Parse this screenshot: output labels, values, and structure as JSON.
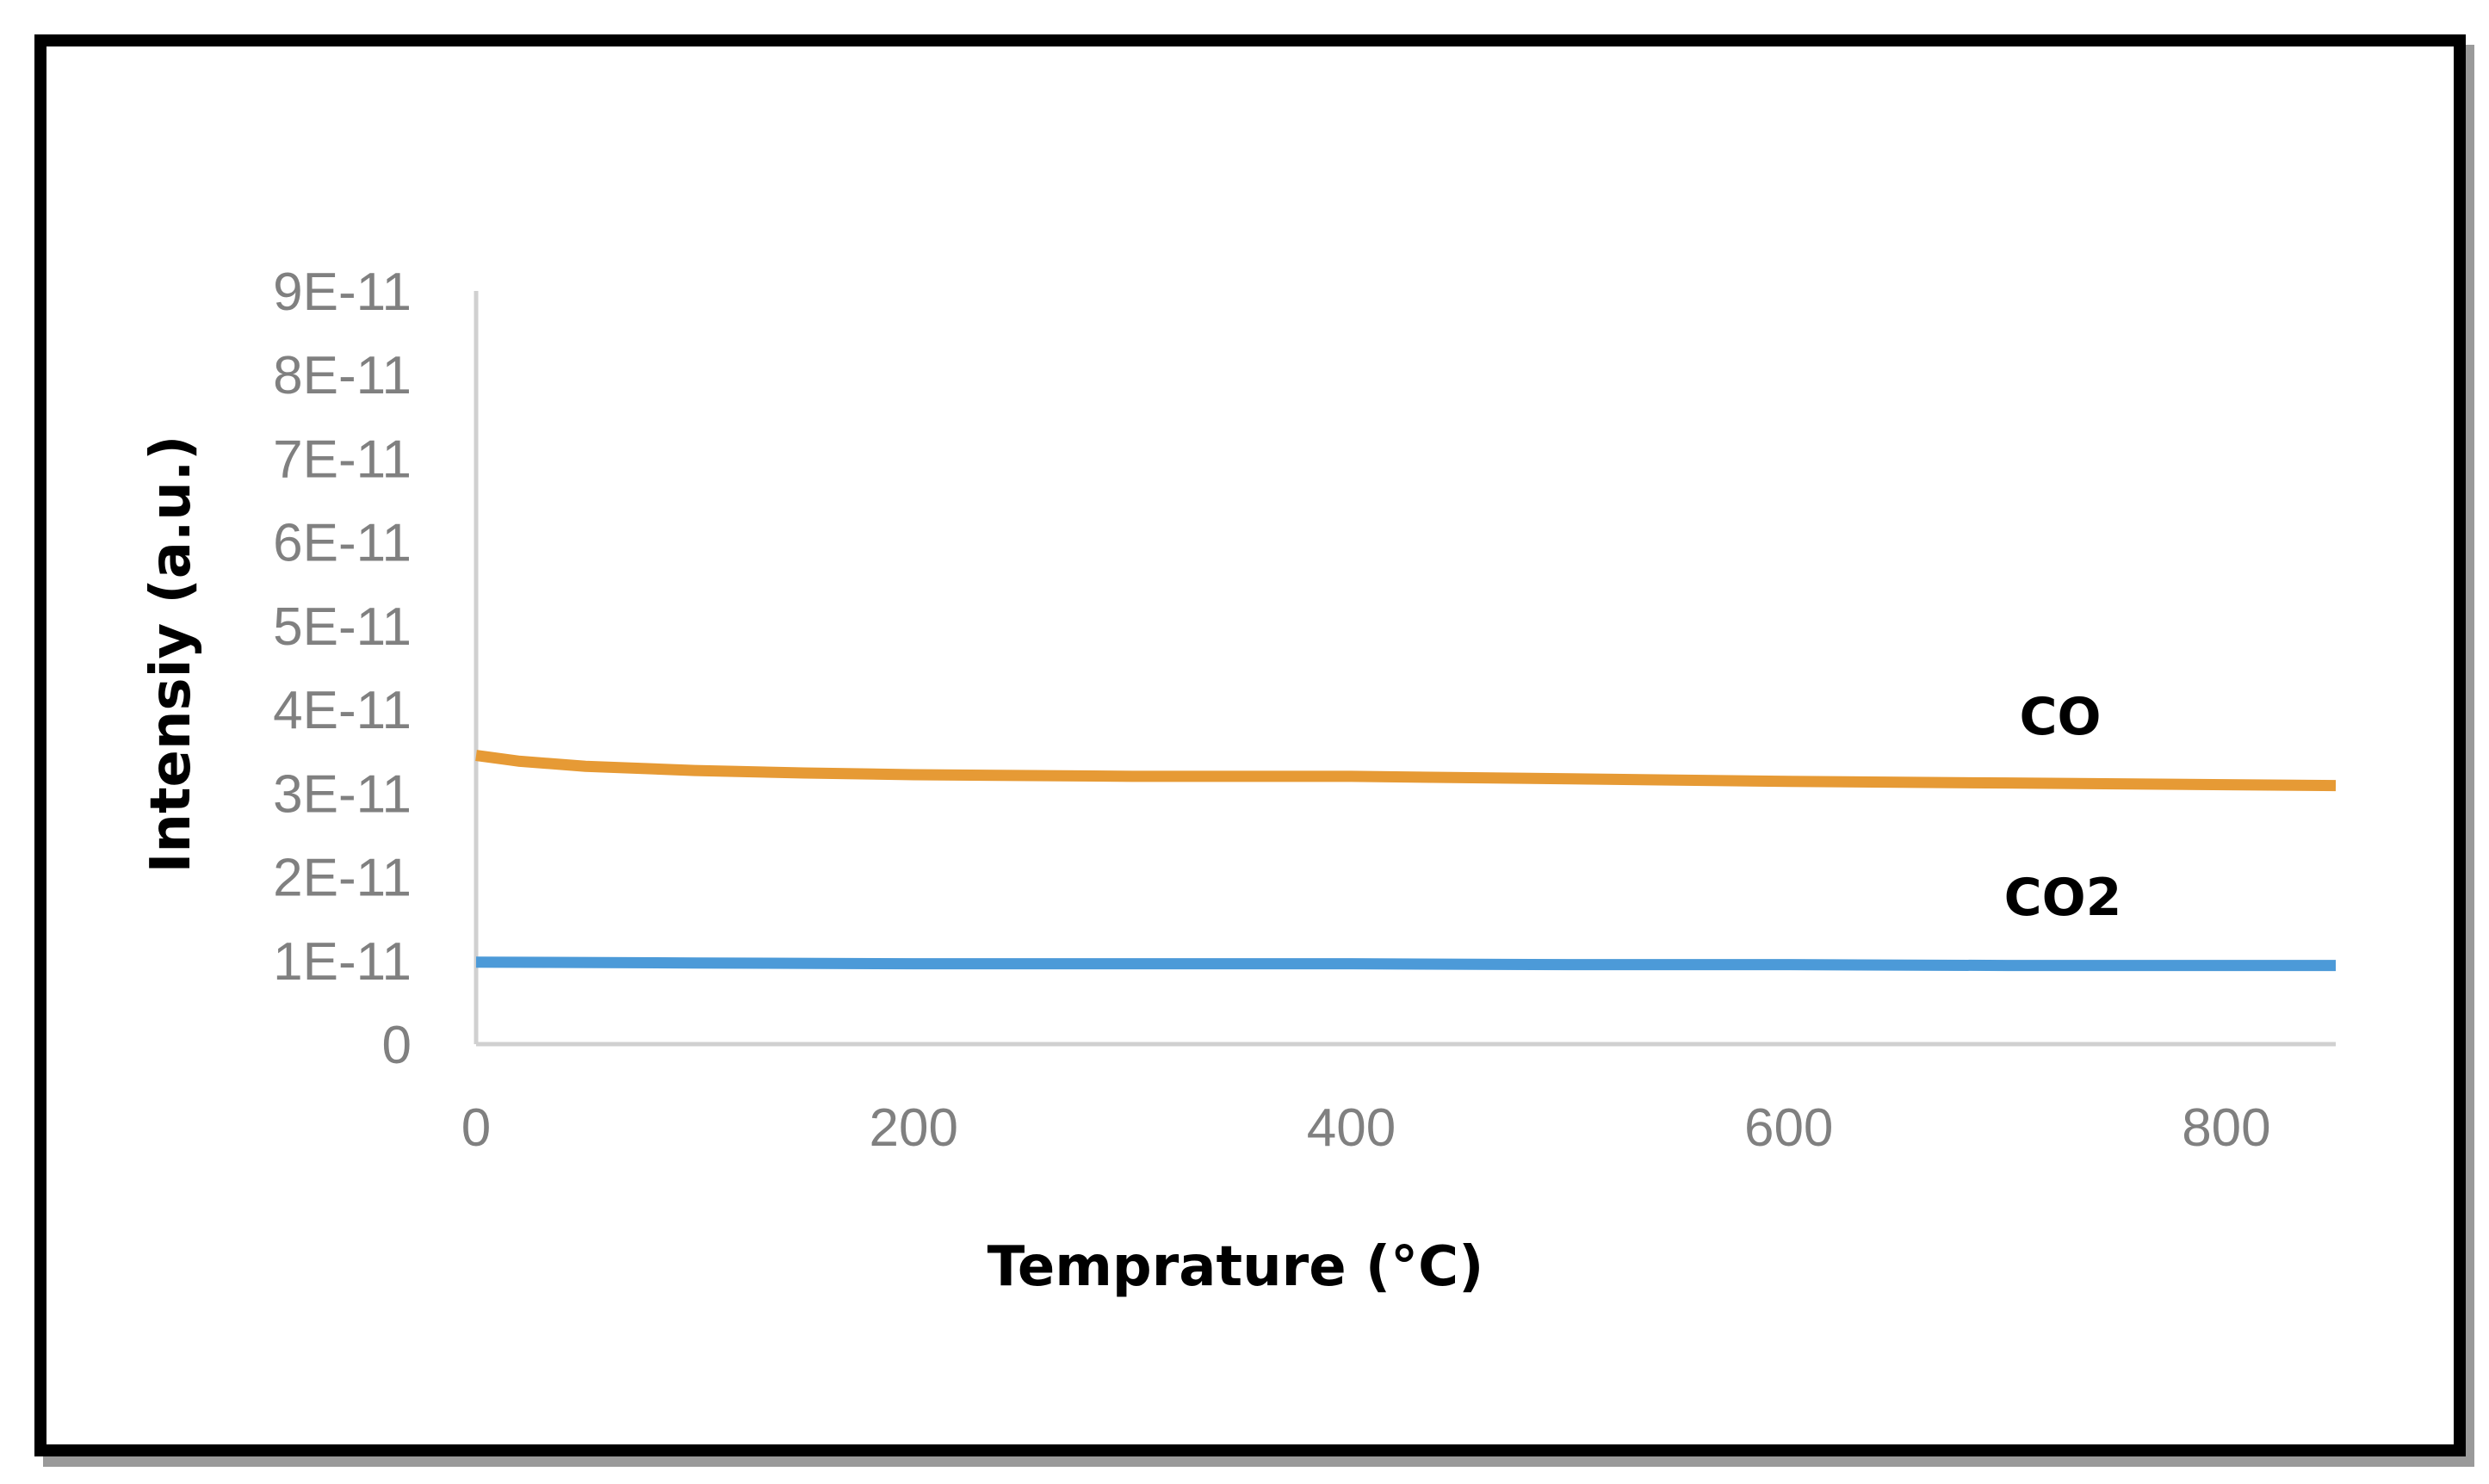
{
  "chart_data": {
    "type": "line",
    "title": "",
    "xlabel": "Temprature (°C)",
    "ylabel": "Intensiy (a.u.)",
    "xlim": [
      0,
      850
    ],
    "ylim": [
      0,
      9e-11
    ],
    "x_ticks": [
      0,
      200,
      400,
      600,
      800
    ],
    "x_tick_labels": [
      "0",
      "200",
      "400",
      "600",
      "800"
    ],
    "y_ticks": [
      0,
      1e-11,
      2e-11,
      3e-11,
      4e-11,
      5e-11,
      6e-11,
      7e-11,
      8e-11,
      9e-11
    ],
    "y_tick_labels": [
      "0",
      "1E-11",
      "2E-11",
      "3E-11",
      "4E-11",
      "5E-11",
      "6E-11",
      "7E-11",
      "8E-11",
      "9E-11"
    ],
    "grid": false,
    "legend": "inline labels",
    "series": [
      {
        "name": "CO",
        "label": "CO",
        "color": "#E69A35",
        "x": [
          0,
          20,
          50,
          100,
          150,
          200,
          300,
          400,
          500,
          600,
          700,
          800,
          850
        ],
        "y": [
          3.45e-11,
          3.38e-11,
          3.32e-11,
          3.27e-11,
          3.24e-11,
          3.22e-11,
          3.2e-11,
          3.2e-11,
          3.17e-11,
          3.14e-11,
          3.12e-11,
          3.1e-11,
          3.09e-11
        ]
      },
      {
        "name": "CO2",
        "label": "CO2",
        "color": "#4C9AD8",
        "x": [
          0,
          100,
          200,
          300,
          400,
          500,
          600,
          700,
          800,
          850
        ],
        "y": [
          9.8e-12,
          9.7e-12,
          9.6e-12,
          9.6e-12,
          9.6e-12,
          9.5e-12,
          9.5e-12,
          9.4e-12,
          9.4e-12,
          9.4e-12
        ]
      }
    ]
  }
}
